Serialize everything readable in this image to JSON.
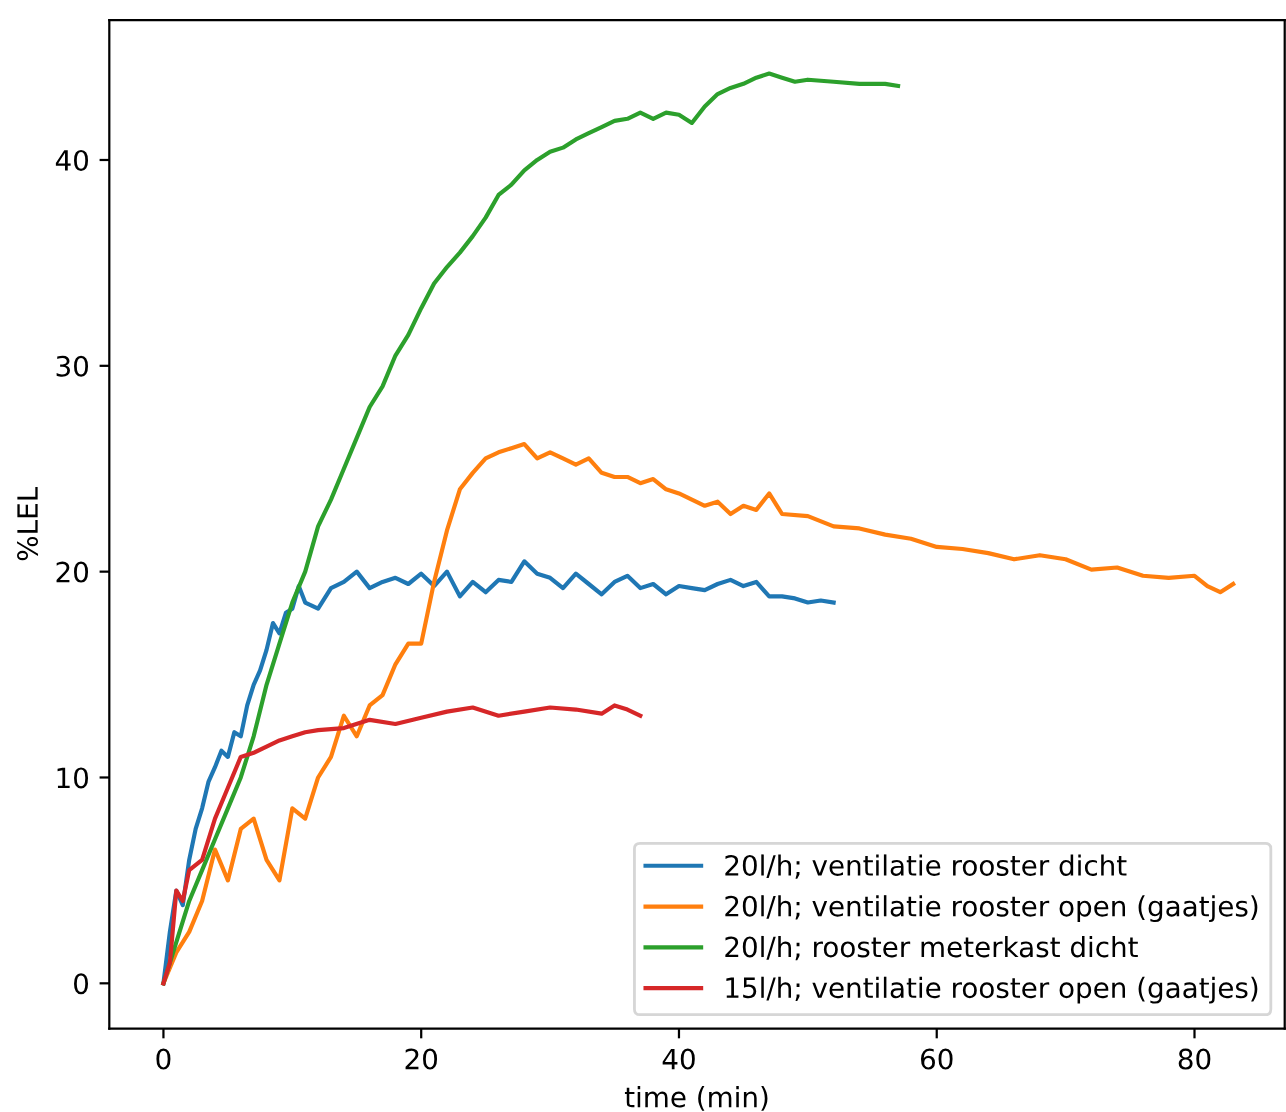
{
  "chart_data": {
    "type": "line",
    "xlabel": "time (min)",
    "ylabel": "%LEL",
    "xlim": [
      -4.2,
      87
    ],
    "ylim": [
      -2.2,
      46.8
    ],
    "xticks": [
      0,
      20,
      40,
      60,
      80
    ],
    "yticks": [
      0,
      10,
      20,
      30,
      40
    ],
    "grid": false,
    "legend": "bottom right",
    "series": [
      {
        "name": "20l/h; ventilatie rooster dicht",
        "color": "#1f77b4",
        "x": [
          0,
          0.5,
          1,
          1.5,
          2,
          2.5,
          3,
          3.5,
          4,
          4.5,
          5,
          5.5,
          6,
          6.5,
          7,
          7.5,
          8,
          8.5,
          9,
          9.5,
          10,
          10.5,
          11,
          12,
          13,
          14,
          15,
          16,
          17,
          18,
          19,
          20,
          21,
          22,
          23,
          24,
          25,
          26,
          27,
          28,
          29,
          30,
          31,
          32,
          33,
          34,
          35,
          36,
          37,
          38,
          39,
          40,
          41,
          42,
          43,
          44,
          45,
          46,
          47,
          48,
          49,
          50,
          51,
          52
        ],
        "values": [
          0,
          2.5,
          4.5,
          3.8,
          6,
          7.5,
          8.5,
          9.8,
          10.5,
          11.3,
          11,
          12.2,
          12,
          13.5,
          14.5,
          15.2,
          16.2,
          17.5,
          17,
          18,
          18.2,
          19.3,
          18.5,
          18.2,
          19.2,
          19.5,
          20,
          19.2,
          19.5,
          19.7,
          19.4,
          19.9,
          19.3,
          20,
          18.8,
          19.5,
          19,
          19.6,
          19.5,
          20.5,
          19.9,
          19.7,
          19.2,
          19.9,
          19.4,
          18.9,
          19.5,
          19.8,
          19.2,
          19.4,
          18.9,
          19.3,
          19.2,
          19.1,
          19.4,
          19.6,
          19.3,
          19.5,
          18.8,
          18.8,
          18.7,
          18.5,
          18.6,
          18.5
        ]
      },
      {
        "name": "20l/h; ventilatie rooster open (gaatjes)",
        "color": "#ff7f0e",
        "x": [
          0,
          1,
          2,
          3,
          4,
          5,
          6,
          7,
          8,
          9,
          10,
          11,
          12,
          13,
          14,
          15,
          16,
          17,
          18,
          19,
          20,
          21,
          22,
          23,
          24,
          25,
          26,
          27,
          28,
          29,
          30,
          31,
          32,
          33,
          34,
          35,
          36,
          37,
          38,
          39,
          40,
          41,
          42,
          43,
          44,
          45,
          46,
          47,
          48,
          50,
          52,
          54,
          56,
          58,
          60,
          62,
          64,
          66,
          68,
          70,
          72,
          74,
          76,
          78,
          80,
          81,
          82,
          83
        ],
        "values": [
          0,
          1.5,
          2.5,
          4,
          6.5,
          5,
          7.5,
          8,
          6,
          5,
          8.5,
          8,
          10,
          11,
          13,
          12,
          13.5,
          14,
          15.5,
          16.5,
          16.5,
          19.5,
          22,
          24,
          24.8,
          25.5,
          25.8,
          26,
          26.2,
          25.5,
          25.8,
          25.5,
          25.2,
          25.5,
          24.8,
          24.6,
          24.6,
          24.3,
          24.5,
          24,
          23.8,
          23.5,
          23.2,
          23.4,
          22.8,
          23.2,
          23,
          23.8,
          22.8,
          22.7,
          22.2,
          22.1,
          21.8,
          21.6,
          21.2,
          21.1,
          20.9,
          20.6,
          20.8,
          20.6,
          20.1,
          20.2,
          19.8,
          19.7,
          19.8,
          19.3,
          19,
          19.4
        ]
      },
      {
        "name": "20l/h; rooster meterkast dicht",
        "color": "#2ca02c",
        "x": [
          0,
          1,
          2,
          3,
          4,
          5,
          6,
          7,
          8,
          9,
          10,
          11,
          12,
          13,
          14,
          15,
          16,
          17,
          18,
          19,
          20,
          21,
          22,
          23,
          24,
          25,
          26,
          27,
          28,
          29,
          30,
          31,
          32,
          33,
          34,
          35,
          36,
          37,
          38,
          39,
          40,
          41,
          42,
          43,
          44,
          45,
          46,
          47,
          48,
          49,
          50,
          52,
          54,
          56,
          57
        ],
        "values": [
          0,
          2,
          4,
          5.5,
          7,
          8.5,
          10,
          12,
          14.5,
          16.5,
          18.5,
          20,
          22.2,
          23.5,
          25,
          26.5,
          28,
          29,
          30.5,
          31.5,
          32.8,
          34,
          34.8,
          35.5,
          36.3,
          37.2,
          38.3,
          38.8,
          39.5,
          40,
          40.4,
          40.6,
          41,
          41.3,
          41.6,
          41.9,
          42,
          42.3,
          42,
          42.3,
          42.2,
          41.8,
          42.6,
          43.2,
          43.5,
          43.7,
          44,
          44.2,
          44,
          43.8,
          43.9,
          43.8,
          43.7,
          43.7,
          43.6
        ]
      },
      {
        "name": "15l/h; ventilatie rooster open (gaatjes)",
        "color": "#d62728",
        "x": [
          0,
          0.5,
          1,
          1.5,
          2,
          3,
          4,
          5,
          6,
          7,
          8,
          9,
          10,
          11,
          12,
          14,
          16,
          18,
          20,
          22,
          24,
          26,
          28,
          30,
          32,
          34,
          35,
          36,
          37
        ],
        "values": [
          0,
          1,
          4.5,
          4,
          5.5,
          6,
          8,
          9.5,
          11,
          11.2,
          11.5,
          11.8,
          12,
          12.2,
          12.3,
          12.4,
          12.8,
          12.6,
          12.9,
          13.2,
          13.4,
          13,
          13.2,
          13.4,
          13.3,
          13.1,
          13.5,
          13.3,
          13
        ]
      }
    ]
  }
}
